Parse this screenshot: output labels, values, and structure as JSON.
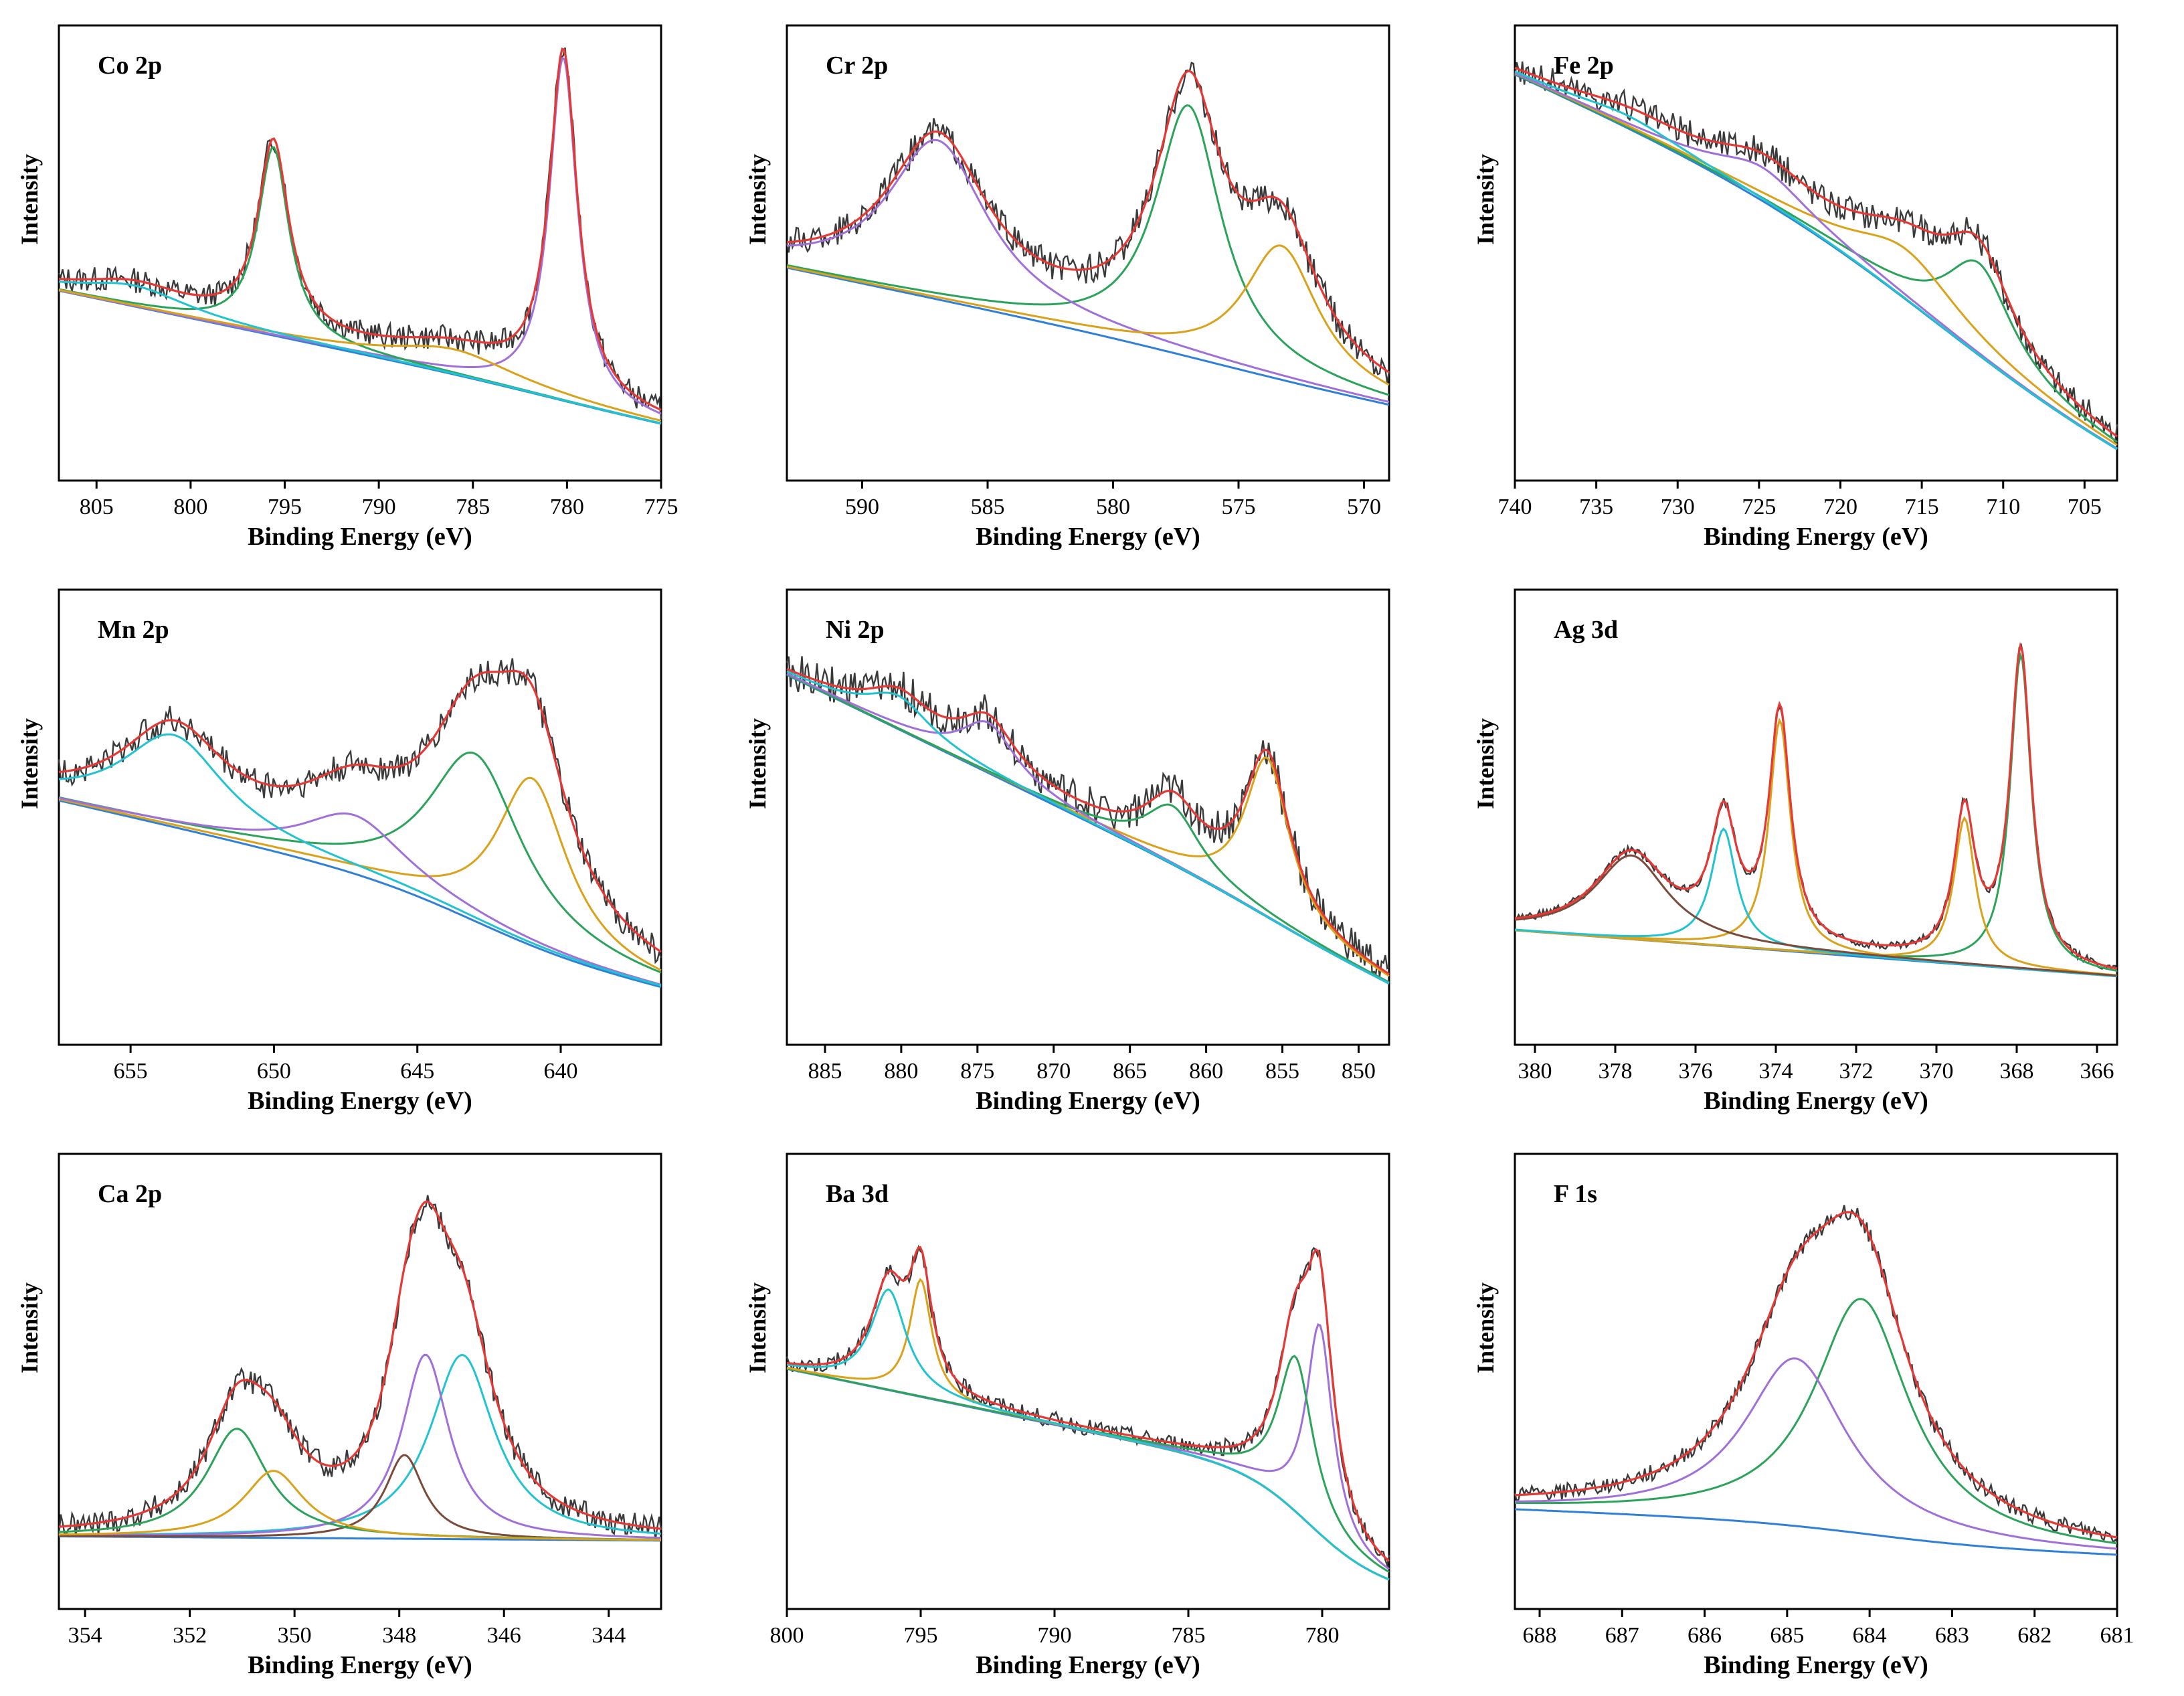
{
  "colors": {
    "raw": "#3a3a3a",
    "envelope": "#e53935",
    "background": "#2f80d6",
    "green": "#2ca35a",
    "gold": "#d9a21a",
    "purple": "#a070d8",
    "cyan": "#22c3d0",
    "brown": "#7a4a3a",
    "axis": "#000000"
  },
  "chart_data": [
    {
      "type": "line",
      "title": "Co 2p",
      "xlabel": "Binding Energy (eV)",
      "ylabel": "Intensity",
      "xlim": [
        807,
        775
      ],
      "xticks": [
        805,
        800,
        795,
        790,
        785,
        780,
        775
      ],
      "ylim": [
        0,
        100
      ],
      "bg": {
        "left": 40,
        "right": 10,
        "step": 2,
        "center": 781,
        "width": 3
      },
      "peaks": [
        {
          "center": 780.2,
          "height": 82,
          "width": 0.9,
          "color": "purple"
        },
        {
          "center": 795.6,
          "height": 45,
          "width": 1.0,
          "color": "green"
        },
        {
          "center": 786,
          "height": 6,
          "width": 4,
          "color": "gold"
        },
        {
          "center": 803,
          "height": 5,
          "width": 3.5,
          "color": "cyan"
        }
      ],
      "noise": 3
    },
    {
      "type": "line",
      "title": "Cr 2p",
      "xlabel": "Binding Energy (eV)",
      "ylabel": "Intensity",
      "xlim": [
        593,
        569
      ],
      "xticks": [
        590,
        585,
        580,
        575,
        570
      ],
      "ylim": [
        0,
        100
      ],
      "bg": {
        "left": 45,
        "right": 15,
        "step": 3,
        "center": 576,
        "width": 3
      },
      "peaks": [
        {
          "center": 577.0,
          "height": 60,
          "width": 1.6,
          "color": "green"
        },
        {
          "center": 587.0,
          "height": 38,
          "width": 2.4,
          "color": "purple"
        },
        {
          "center": 573.3,
          "height": 32,
          "width": 1.8,
          "color": "gold"
        }
      ],
      "noise": 3.5
    },
    {
      "type": "line",
      "title": "Fe 2p",
      "xlabel": "Binding Energy (eV)",
      "ylabel": "Intensity",
      "xlim": [
        740,
        703
      ],
      "xticks": [
        740,
        735,
        730,
        725,
        720,
        715,
        710,
        705
      ],
      "ylim": [
        0,
        100
      ],
      "bg": {
        "left": 78,
        "right": 14,
        "step": 30,
        "center": 714,
        "width": 6
      },
      "peaks": [
        {
          "center": 711.5,
          "height": 22,
          "width": 2.5,
          "color": "green"
        },
        {
          "center": 716.0,
          "height": 12,
          "width": 4,
          "color": "gold"
        },
        {
          "center": 724.8,
          "height": 8,
          "width": 3.5,
          "color": "purple"
        },
        {
          "center": 733.0,
          "height": 3,
          "width": 4,
          "color": "cyan"
        }
      ],
      "noise": 3.5
    },
    {
      "type": "line",
      "title": "Mn 2p",
      "xlabel": "Binding Energy (eV)",
      "ylabel": "Intensity",
      "xlim": [
        657.5,
        636.5
      ],
      "xticks": [
        655,
        650,
        645,
        640
      ],
      "ylim": [
        0,
        100
      ],
      "bg": {
        "left": 48,
        "right": 15,
        "step": 12,
        "center": 643,
        "width": 2
      },
      "peaks": [
        {
          "center": 641.0,
          "height": 40,
          "width": 1.5,
          "color": "gold"
        },
        {
          "center": 643.0,
          "height": 40,
          "width": 2.0,
          "color": "green"
        },
        {
          "center": 647.2,
          "height": 14,
          "width": 2.2,
          "color": "purple"
        },
        {
          "center": 653.5,
          "height": 22,
          "width": 2.2,
          "color": "cyan"
        }
      ],
      "noise": 3.5
    },
    {
      "type": "line",
      "title": "Ni 2p",
      "xlabel": "Binding Energy (eV)",
      "ylabel": "Intensity",
      "xlim": [
        887.5,
        848
      ],
      "xticks": [
        885,
        880,
        875,
        870,
        865,
        860,
        855,
        850
      ],
      "ylim": [
        0,
        100
      ],
      "bg": {
        "left": 82,
        "right": 12,
        "step": 4,
        "center": 856,
        "width": 3
      },
      "peaks": [
        {
          "center": 856.0,
          "height": 38,
          "width": 1.8,
          "color": "gold"
        },
        {
          "center": 862.2,
          "height": 14,
          "width": 2.2,
          "color": "green"
        },
        {
          "center": 874.3,
          "height": 12,
          "width": 2.2,
          "color": "purple"
        },
        {
          "center": 880.2,
          "height": 8,
          "width": 2.5,
          "color": "cyan"
        }
      ],
      "noise": 4.5
    },
    {
      "type": "line",
      "title": "Ag 3d",
      "xlabel": "Binding Energy (eV)",
      "ylabel": "Intensity",
      "xlim": [
        380.5,
        365.5
      ],
      "xticks": [
        380,
        378,
        376,
        374,
        372,
        370,
        368,
        366
      ],
      "ylim": [
        0,
        100
      ],
      "bg": {
        "left": 23,
        "right": 12,
        "step": 0,
        "center": 372,
        "width": 3
      },
      "peaks": [
        {
          "center": 367.9,
          "height": 75,
          "width": 0.32,
          "color": "green"
        },
        {
          "center": 373.9,
          "height": 55,
          "width": 0.32,
          "color": "gold"
        },
        {
          "center": 369.3,
          "height": 35,
          "width": 0.32,
          "color": "gold"
        },
        {
          "center": 375.3,
          "height": 28,
          "width": 0.38,
          "color": "cyan"
        },
        {
          "center": 377.6,
          "height": 20,
          "width": 1.1,
          "color": "brown"
        }
      ],
      "noise": 1
    },
    {
      "type": "line",
      "title": "Ca 2p",
      "xlabel": "Binding Energy (eV)",
      "ylabel": "Intensity",
      "xlim": [
        354.5,
        343
      ],
      "xticks": [
        354,
        352,
        350,
        348,
        346,
        344
      ],
      "ylim": [
        0,
        100
      ],
      "bg": {
        "left": 13,
        "right": 12,
        "step": 0,
        "center": 348,
        "width": 2
      },
      "peaks": [
        {
          "center": 346.8,
          "height": 44,
          "width": 0.75,
          "color": "cyan"
        },
        {
          "center": 347.5,
          "height": 44,
          "width": 0.55,
          "color": "purple"
        },
        {
          "center": 347.9,
          "height": 20,
          "width": 0.45,
          "color": "brown"
        },
        {
          "center": 351.1,
          "height": 26,
          "width": 0.7,
          "color": "green"
        },
        {
          "center": 350.4,
          "height": 16,
          "width": 0.7,
          "color": "gold"
        }
      ],
      "noise": 3
    },
    {
      "type": "line",
      "title": "Ba 3d",
      "xlabel": "Binding Energy (eV)",
      "ylabel": "Intensity",
      "xlim": [
        800,
        777.5
      ],
      "xticks": [
        800,
        795,
        790,
        785,
        780
      ],
      "ylim": [
        0,
        100
      ],
      "bg": {
        "left": 42,
        "right": 12,
        "step": 22,
        "center": 780.5,
        "width": 1.2
      },
      "peaks": [
        {
          "center": 780.1,
          "height": 50,
          "width": 0.6,
          "color": "purple"
        },
        {
          "center": 781.0,
          "height": 37,
          "width": 0.8,
          "color": "green"
        },
        {
          "center": 795.0,
          "height": 28,
          "width": 0.5,
          "color": "gold"
        },
        {
          "center": 796.2,
          "height": 24,
          "width": 0.8,
          "color": "cyan"
        }
      ],
      "noise": 2
    },
    {
      "type": "line",
      "title": "F 1s",
      "xlabel": "Binding Energy (eV)",
      "ylabel": "Intensity",
      "xlim": [
        688.3,
        681
      ],
      "xticks": [
        688,
        687,
        686,
        685,
        684,
        683,
        682,
        681
      ],
      "ylim": [
        0,
        100
      ],
      "bg": {
        "left": 17,
        "right": 11,
        "step": 5,
        "center": 684,
        "width": 0.8
      },
      "peaks": [
        {
          "center": 684.1,
          "height": 56,
          "width": 0.7,
          "color": "green"
        },
        {
          "center": 684.9,
          "height": 40,
          "width": 0.75,
          "color": "purple"
        }
      ],
      "noise": 2
    }
  ]
}
